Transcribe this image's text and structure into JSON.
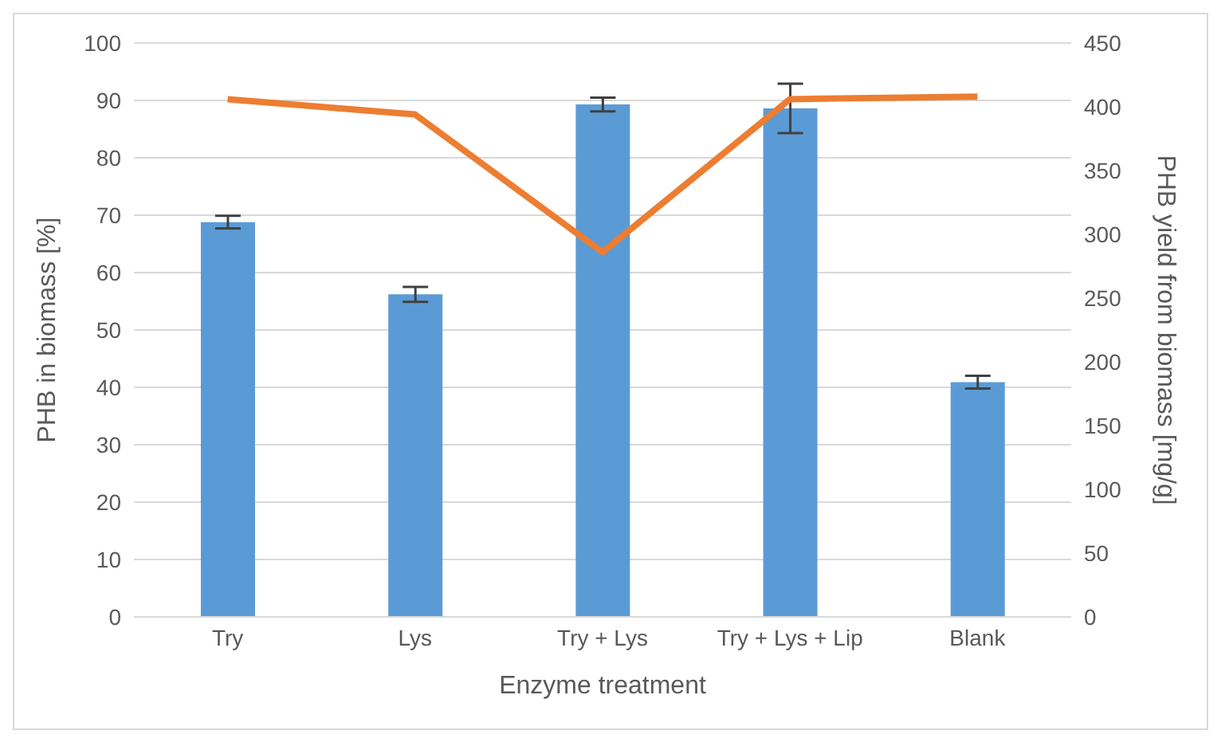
{
  "chart_data": {
    "type": "bar",
    "xlabel": "Enzyme treatment",
    "ylabel": "PHB in biomass [%]",
    "y2label": "PHB yield from biomass [mg/g]",
    "categories": [
      "Try",
      "Lys",
      "Try + Lys",
      "Try + Lys + Lip",
      "Blank"
    ],
    "series": [
      {
        "color": "#5b9bd5",
        "values": [
          68.8,
          56.2,
          89.3,
          88.6,
          40.9
        ],
        "errors": [
          1.1,
          1.3,
          1.2,
          4.3,
          1.1
        ]
      },
      {
        "type": "line",
        "axis": "y2",
        "color": "#ed7d31",
        "values": [
          406,
          394,
          286,
          406,
          408
        ],
        "marker": "none"
      }
    ],
    "ylim": [
      0,
      100
    ],
    "yticks": [
      0,
      10,
      20,
      30,
      40,
      50,
      60,
      70,
      80,
      90,
      100
    ],
    "y2lim": [
      0,
      450
    ],
    "y2ticks": [
      0,
      50,
      100,
      150,
      200,
      250,
      300,
      350,
      400,
      450
    ],
    "grid": "y",
    "legend": false
  }
}
